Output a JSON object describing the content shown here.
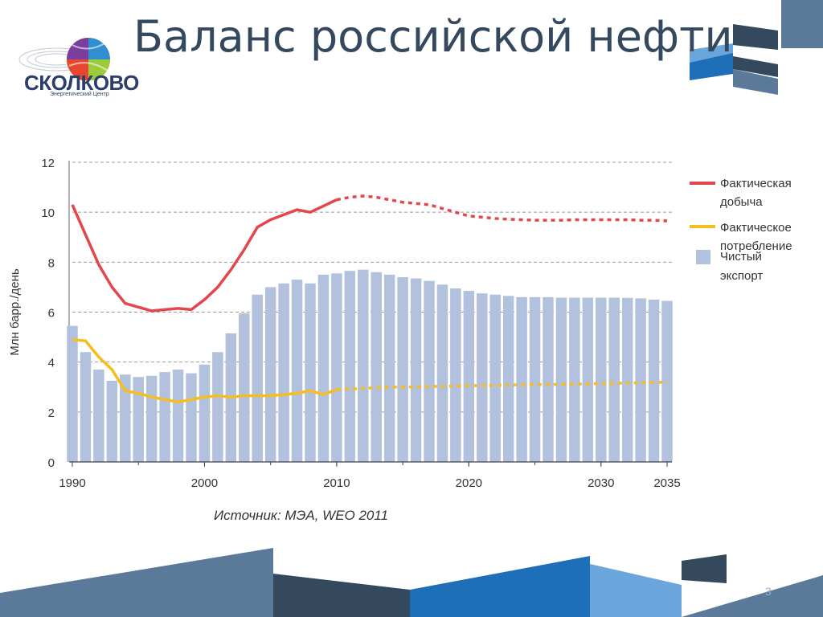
{
  "header": {
    "title": "Баланс российской нефти",
    "logo_text": "СКОЛКОВО",
    "logo_subtitle": "Энергетический Центр"
  },
  "source": "Источник: МЭА, WEO 2011",
  "page_number": "3",
  "colors": {
    "production": "#e2474b",
    "consumption": "#f5bd1f",
    "export": "#b2c1de",
    "title": "#34495e",
    "deco_dark": "#34495e",
    "deco_mid": "#5b7a99",
    "deco_blue": "#1f6fb8",
    "deco_light": "#6aa5dc"
  },
  "chart_data": {
    "type": "bar",
    "title": "",
    "xlabel": "",
    "ylabel": "Млн барр./день",
    "xlim": [
      1990,
      2035
    ],
    "ylim": [
      0,
      12
    ],
    "yticks": [
      0,
      2,
      4,
      6,
      8,
      10,
      12
    ],
    "xticks": [
      1990,
      2000,
      2010,
      2020,
      2030,
      2035
    ],
    "grid": true,
    "legend_position": "right",
    "actual_until": 2010,
    "x": [
      1990,
      1991,
      1992,
      1993,
      1994,
      1995,
      1996,
      1997,
      1998,
      1999,
      2000,
      2001,
      2002,
      2003,
      2004,
      2005,
      2006,
      2007,
      2008,
      2009,
      2010,
      2011,
      2012,
      2013,
      2014,
      2015,
      2016,
      2017,
      2018,
      2019,
      2020,
      2021,
      2022,
      2023,
      2024,
      2025,
      2026,
      2027,
      2028,
      2029,
      2030,
      2031,
      2032,
      2033,
      2034,
      2035
    ],
    "series": [
      {
        "name": "Фактическая добыча",
        "kind": "line",
        "values": [
          10.3,
          9.1,
          7.9,
          7.0,
          6.35,
          6.2,
          6.05,
          6.1,
          6.15,
          6.1,
          6.5,
          7.0,
          7.7,
          8.5,
          9.4,
          9.7,
          9.9,
          10.1,
          10.0,
          10.25,
          10.5,
          10.6,
          10.65,
          10.6,
          10.5,
          10.4,
          10.35,
          10.3,
          10.15,
          10.0,
          9.85,
          9.8,
          9.75,
          9.72,
          9.7,
          9.68,
          9.68,
          9.68,
          9.7,
          9.7,
          9.7,
          9.7,
          9.7,
          9.68,
          9.68,
          9.65
        ]
      },
      {
        "name": "Фактическое потребление",
        "kind": "line",
        "values": [
          4.9,
          4.85,
          4.2,
          3.7,
          2.85,
          2.75,
          2.6,
          2.5,
          2.4,
          2.5,
          2.6,
          2.65,
          2.6,
          2.65,
          2.65,
          2.65,
          2.7,
          2.75,
          2.85,
          2.7,
          2.9,
          2.92,
          2.95,
          2.97,
          3.0,
          3.0,
          3.01,
          3.02,
          3.03,
          3.04,
          3.05,
          3.06,
          3.07,
          3.08,
          3.09,
          3.1,
          3.1,
          3.11,
          3.12,
          3.13,
          3.14,
          3.15,
          3.16,
          3.17,
          3.18,
          3.2
        ]
      },
      {
        "name": "Чистый экспорт",
        "kind": "bar",
        "values": [
          5.45,
          4.4,
          3.7,
          3.25,
          3.5,
          3.4,
          3.45,
          3.6,
          3.7,
          3.55,
          3.9,
          4.4,
          5.15,
          5.95,
          6.7,
          7.0,
          7.15,
          7.3,
          7.15,
          7.5,
          7.55,
          7.65,
          7.7,
          7.6,
          7.5,
          7.4,
          7.35,
          7.25,
          7.1,
          6.95,
          6.85,
          6.75,
          6.7,
          6.65,
          6.6,
          6.6,
          6.6,
          6.58,
          6.58,
          6.58,
          6.58,
          6.58,
          6.57,
          6.55,
          6.5,
          6.45
        ]
      }
    ]
  }
}
